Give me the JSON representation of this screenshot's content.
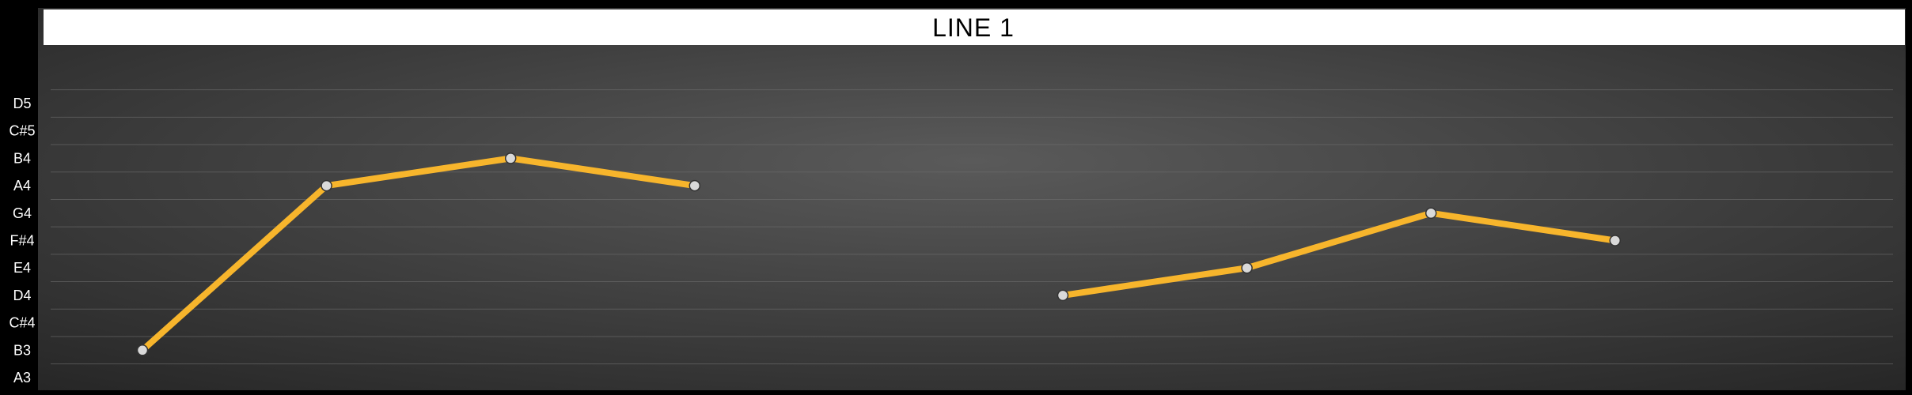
{
  "chart_data": {
    "type": "line",
    "title": "LINE 1",
    "xlabel": "",
    "ylabel": "",
    "y_categories": [
      "A3",
      "B3",
      "C#4",
      "D4",
      "E4",
      "F#4",
      "G4",
      "A4",
      "B4",
      "C#5",
      "D5"
    ],
    "series": [
      {
        "points": [
          {
            "x": 1,
            "y": "B3"
          },
          {
            "x": 2,
            "y": "A4"
          },
          {
            "x": 3,
            "y": "B4"
          },
          {
            "x": 4,
            "y": "A4"
          },
          {
            "x": 5,
            "y": null
          },
          {
            "x": 6,
            "y": "D4"
          },
          {
            "x": 7,
            "y": "E4"
          },
          {
            "x": 8,
            "y": "G4"
          },
          {
            "x": 9,
            "y": "F#4"
          }
        ]
      }
    ],
    "grid": true,
    "legend": "none",
    "colors": {
      "line": "#f7b52c",
      "marker_fill": "#d9d9d9",
      "marker_stroke": "#333333",
      "background_center": "#5a5a5a",
      "background_edge": "#262626",
      "title_band": "#ffffff",
      "gridline": "#6e6e6e"
    }
  }
}
